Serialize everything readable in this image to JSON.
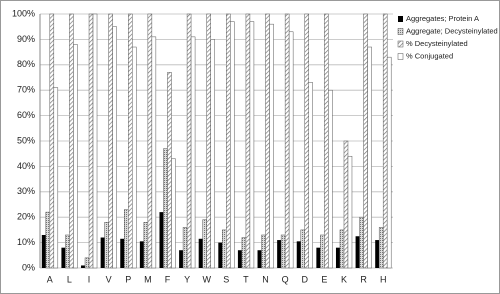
{
  "chart_data": {
    "type": "bar",
    "categories": [
      "A",
      "L",
      "I",
      "V",
      "P",
      "M",
      "F",
      "Y",
      "W",
      "S",
      "T",
      "N",
      "Q",
      "D",
      "E",
      "K",
      "R",
      "H"
    ],
    "series": [
      {
        "name": "Aggregates; Protein A",
        "color": "#000000",
        "pattern": "solid",
        "values": [
          13,
          8,
          1,
          12,
          11.5,
          10.5,
          22,
          7,
          11.5,
          10,
          7,
          7,
          11,
          10.5,
          8,
          8,
          12.5,
          11
        ]
      },
      {
        "name": "Aggregate; Decysteinylated",
        "color": "#bbbbbb",
        "pattern": "dots",
        "values": [
          22,
          13,
          4,
          18,
          23,
          18,
          47,
          16,
          19,
          15,
          12,
          13,
          13,
          15,
          13,
          15,
          20,
          16
        ]
      },
      {
        "name": "% Decysteinylated",
        "color": "#888888",
        "pattern": "hatch",
        "values": [
          100,
          100,
          100,
          100,
          100,
          100,
          77,
          100,
          100,
          100,
          100,
          100,
          100,
          100,
          100,
          50,
          100,
          100
        ]
      },
      {
        "name": "% Conjugated",
        "color": "#ffffff",
        "pattern": "solid",
        "values": [
          71,
          88,
          100,
          95,
          87,
          91,
          43,
          91,
          90,
          97,
          97,
          96,
          93,
          73,
          70,
          44,
          87,
          83
        ]
      }
    ],
    "ylim": [
      0,
      100
    ],
    "yticks": [
      {
        "value": 0,
        "label": "0%"
      },
      {
        "value": 10,
        "label": "10%"
      },
      {
        "value": 20,
        "label": "20%"
      },
      {
        "value": 30,
        "label": "30%"
      },
      {
        "value": 40,
        "label": "40%"
      },
      {
        "value": 50,
        "label": "50%"
      },
      {
        "value": 60,
        "label": "60%"
      },
      {
        "value": 70,
        "label": "70%"
      },
      {
        "value": 80,
        "label": "80%"
      },
      {
        "value": 90,
        "label": "90%"
      },
      {
        "value": 100,
        "label": "100%"
      }
    ],
    "grid": true,
    "legend": "right"
  }
}
